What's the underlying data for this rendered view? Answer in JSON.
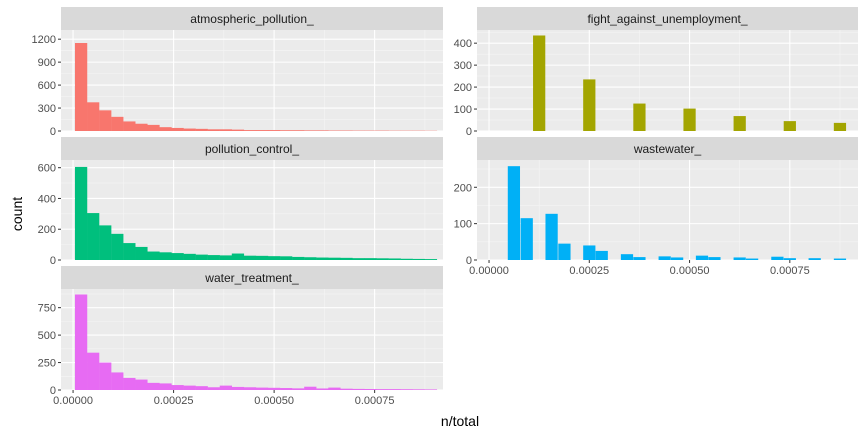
{
  "chart_data": {
    "type": "bar",
    "xlabel": "n/total",
    "ylabel": "count",
    "grid": true,
    "legend": "none",
    "facets": [
      {
        "title": "atmospheric_pollution_",
        "color": "#F8766D",
        "xlim": [
          -3e-05,
          0.00092
        ],
        "ylim": [
          0,
          1320
        ],
        "yticks": [
          0,
          300,
          600,
          900,
          1200
        ],
        "xticks": [
          0,
          0.00025,
          0.0005,
          0.00075
        ],
        "xtick_labels": [
          "0.00000",
          "0.00025",
          "0.00050",
          "0.00075"
        ],
        "show_xticks": false,
        "bars": [
          {
            "x": 2e-05,
            "y": 1150
          },
          {
            "x": 5e-05,
            "y": 375
          },
          {
            "x": 8e-05,
            "y": 270
          },
          {
            "x": 0.00011,
            "y": 185
          },
          {
            "x": 0.00014,
            "y": 125
          },
          {
            "x": 0.00017,
            "y": 95
          },
          {
            "x": 0.0002,
            "y": 80
          },
          {
            "x": 0.00023,
            "y": 50
          },
          {
            "x": 0.00026,
            "y": 40
          },
          {
            "x": 0.00029,
            "y": 32
          },
          {
            "x": 0.00032,
            "y": 28
          },
          {
            "x": 0.00035,
            "y": 22
          },
          {
            "x": 0.00038,
            "y": 22
          },
          {
            "x": 0.00041,
            "y": 18
          },
          {
            "x": 0.00044,
            "y": 12
          },
          {
            "x": 0.00047,
            "y": 12
          },
          {
            "x": 0.0005,
            "y": 12
          },
          {
            "x": 0.00053,
            "y": 10
          },
          {
            "x": 0.00056,
            "y": 10
          },
          {
            "x": 0.00059,
            "y": 8
          },
          {
            "x": 0.00062,
            "y": 8
          },
          {
            "x": 0.00065,
            "y": 6
          },
          {
            "x": 0.00068,
            "y": 6
          },
          {
            "x": 0.00071,
            "y": 5
          },
          {
            "x": 0.00074,
            "y": 5
          },
          {
            "x": 0.00077,
            "y": 5
          },
          {
            "x": 0.0008,
            "y": 4
          },
          {
            "x": 0.00083,
            "y": 4
          },
          {
            "x": 0.00086,
            "y": 4
          },
          {
            "x": 0.00089,
            "y": 3
          }
        ]
      },
      {
        "title": "fight_against_unemployment_",
        "color": "#A3A500",
        "xlim": [
          -3e-05,
          0.00092
        ],
        "ylim": [
          0,
          460
        ],
        "yticks": [
          0,
          100,
          200,
          300,
          400
        ],
        "xticks": [
          0,
          0.00025,
          0.0005,
          0.00075
        ],
        "xtick_labels": [
          "0.00000",
          "0.00025",
          "0.00050",
          "0.00075"
        ],
        "show_xticks": false,
        "bars": [
          {
            "x": 0.000125,
            "y": 435
          },
          {
            "x": 0.00025,
            "y": 235
          },
          {
            "x": 0.000375,
            "y": 125
          },
          {
            "x": 0.0005,
            "y": 102
          },
          {
            "x": 0.000625,
            "y": 68
          },
          {
            "x": 0.00075,
            "y": 45
          },
          {
            "x": 0.000875,
            "y": 37
          }
        ]
      },
      {
        "title": "pollution_control_",
        "color": "#00BF7D",
        "xlim": [
          -3e-05,
          0.00092
        ],
        "ylim": [
          0,
          650
        ],
        "yticks": [
          0,
          200,
          400,
          600
        ],
        "xticks": [
          0,
          0.00025,
          0.0005,
          0.00075
        ],
        "xtick_labels": [
          "0.00000",
          "0.00025",
          "0.00050",
          "0.00075"
        ],
        "show_xticks": false,
        "bars": [
          {
            "x": 2e-05,
            "y": 605
          },
          {
            "x": 5e-05,
            "y": 305
          },
          {
            "x": 8e-05,
            "y": 225
          },
          {
            "x": 0.00011,
            "y": 170
          },
          {
            "x": 0.00014,
            "y": 110
          },
          {
            "x": 0.00017,
            "y": 85
          },
          {
            "x": 0.0002,
            "y": 55
          },
          {
            "x": 0.00023,
            "y": 50
          },
          {
            "x": 0.00026,
            "y": 45
          },
          {
            "x": 0.00029,
            "y": 40
          },
          {
            "x": 0.00032,
            "y": 35
          },
          {
            "x": 0.00035,
            "y": 32
          },
          {
            "x": 0.00038,
            "y": 30
          },
          {
            "x": 0.00041,
            "y": 42
          },
          {
            "x": 0.00044,
            "y": 28
          },
          {
            "x": 0.00047,
            "y": 27
          },
          {
            "x": 0.0005,
            "y": 25
          },
          {
            "x": 0.00053,
            "y": 24
          },
          {
            "x": 0.00056,
            "y": 20
          },
          {
            "x": 0.00059,
            "y": 18
          },
          {
            "x": 0.00062,
            "y": 16
          },
          {
            "x": 0.00065,
            "y": 15
          },
          {
            "x": 0.00068,
            "y": 14
          },
          {
            "x": 0.00071,
            "y": 12
          },
          {
            "x": 0.00074,
            "y": 12
          },
          {
            "x": 0.00077,
            "y": 11
          },
          {
            "x": 0.0008,
            "y": 10
          },
          {
            "x": 0.00083,
            "y": 8
          },
          {
            "x": 0.00086,
            "y": 7
          },
          {
            "x": 0.00089,
            "y": 6
          }
        ]
      },
      {
        "title": "wastewater_",
        "color": "#00B0F6",
        "xlim": [
          -3e-05,
          0.00092
        ],
        "ylim": [
          0,
          275
        ],
        "yticks": [
          0,
          100,
          200
        ],
        "xticks": [
          0,
          0.00025,
          0.0005,
          0.00075
        ],
        "xtick_labels": [
          "0.00000",
          "0.00025",
          "0.00050",
          "0.00075"
        ],
        "show_xticks": true,
        "bars": [
          {
            "x": 6.2e-05,
            "y": 258
          },
          {
            "x": 9.4e-05,
            "y": 115
          },
          {
            "x": 0.000156,
            "y": 127
          },
          {
            "x": 0.000188,
            "y": 45
          },
          {
            "x": 0.00025,
            "y": 40
          },
          {
            "x": 0.000281,
            "y": 25
          },
          {
            "x": 0.000344,
            "y": 16
          },
          {
            "x": 0.000375,
            "y": 8
          },
          {
            "x": 0.000438,
            "y": 10
          },
          {
            "x": 0.000469,
            "y": 7
          },
          {
            "x": 0.000531,
            "y": 12
          },
          {
            "x": 0.000562,
            "y": 8
          },
          {
            "x": 0.000625,
            "y": 7
          },
          {
            "x": 0.000656,
            "y": 4
          },
          {
            "x": 0.000719,
            "y": 9
          },
          {
            "x": 0.00075,
            "y": 5
          },
          {
            "x": 0.000812,
            "y": 5
          },
          {
            "x": 0.000875,
            "y": 4
          }
        ]
      },
      {
        "title": "water_treatment_",
        "color": "#E76BF3",
        "xlim": [
          -3e-05,
          0.00092
        ],
        "ylim": [
          0,
          920
        ],
        "yticks": [
          0,
          250,
          500,
          750
        ],
        "xticks": [
          0,
          0.00025,
          0.0005,
          0.00075
        ],
        "xtick_labels": [
          "0.00000",
          "0.00025",
          "0.00050",
          "0.00075"
        ],
        "show_xticks": true,
        "bars": [
          {
            "x": 2e-05,
            "y": 870
          },
          {
            "x": 5e-05,
            "y": 340
          },
          {
            "x": 8e-05,
            "y": 250
          },
          {
            "x": 0.00011,
            "y": 160
          },
          {
            "x": 0.00014,
            "y": 110
          },
          {
            "x": 0.00017,
            "y": 95
          },
          {
            "x": 0.0002,
            "y": 65
          },
          {
            "x": 0.00023,
            "y": 60
          },
          {
            "x": 0.00026,
            "y": 45
          },
          {
            "x": 0.00029,
            "y": 40
          },
          {
            "x": 0.00032,
            "y": 35
          },
          {
            "x": 0.00035,
            "y": 25
          },
          {
            "x": 0.00038,
            "y": 40
          },
          {
            "x": 0.00041,
            "y": 28
          },
          {
            "x": 0.00044,
            "y": 25
          },
          {
            "x": 0.00047,
            "y": 22
          },
          {
            "x": 0.0005,
            "y": 20
          },
          {
            "x": 0.00053,
            "y": 18
          },
          {
            "x": 0.00056,
            "y": 15
          },
          {
            "x": 0.00059,
            "y": 30
          },
          {
            "x": 0.00062,
            "y": 14
          },
          {
            "x": 0.00065,
            "y": 22
          },
          {
            "x": 0.00068,
            "y": 12
          },
          {
            "x": 0.00071,
            "y": 10
          },
          {
            "x": 0.00074,
            "y": 9
          },
          {
            "x": 0.00077,
            "y": 8
          },
          {
            "x": 0.0008,
            "y": 8
          },
          {
            "x": 0.00083,
            "y": 7
          },
          {
            "x": 0.00086,
            "y": 6
          },
          {
            "x": 0.00089,
            "y": 5
          }
        ]
      }
    ]
  }
}
